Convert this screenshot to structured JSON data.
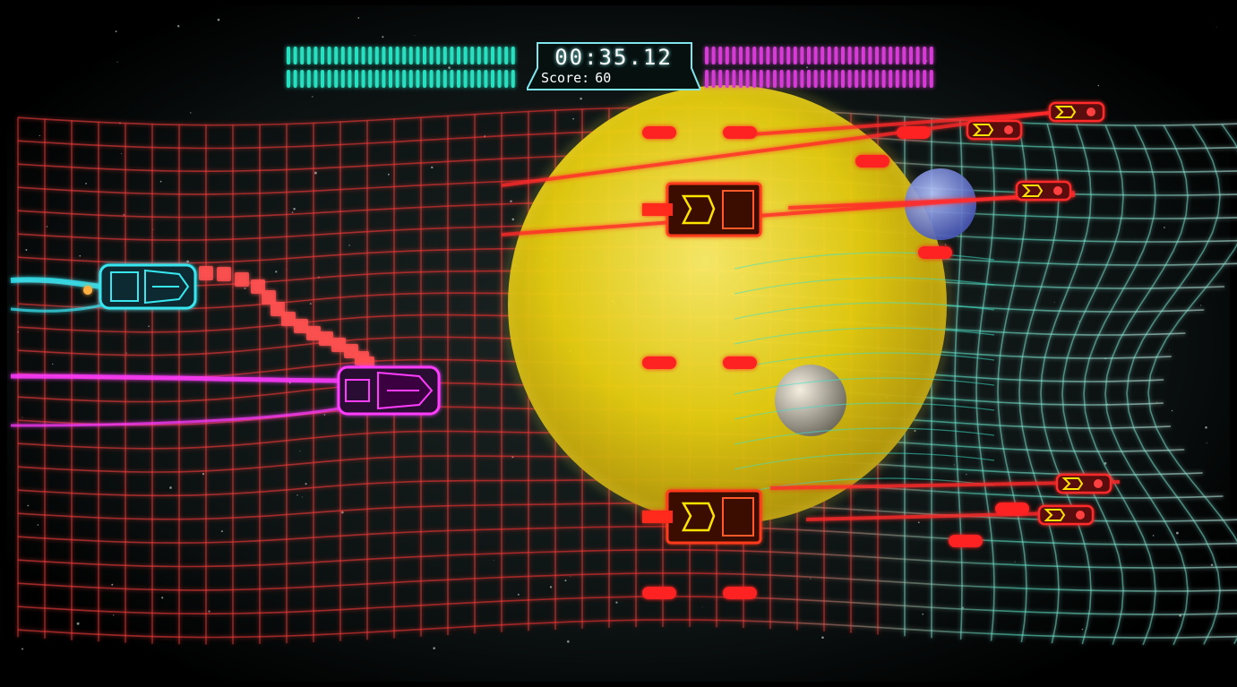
{
  "hud": {
    "timer": "00:35.12",
    "score_label": "Score:",
    "score_value": "60",
    "left_meter_color": "#27e0c0",
    "right_meter_color": "#d63ad6"
  },
  "players": [
    {
      "name": "cyan-player-car",
      "color": "#38e6f0"
    },
    {
      "name": "magenta-player-car",
      "color": "#ff3cff"
    }
  ],
  "enemies": {
    "turret_color": "#ff2020",
    "accent_color": "#ffe400"
  },
  "background": {
    "grid_warm_color": "#ff3a3a",
    "grid_cool_color": "#3de0c8",
    "planet_color": "#f2dc10"
  }
}
